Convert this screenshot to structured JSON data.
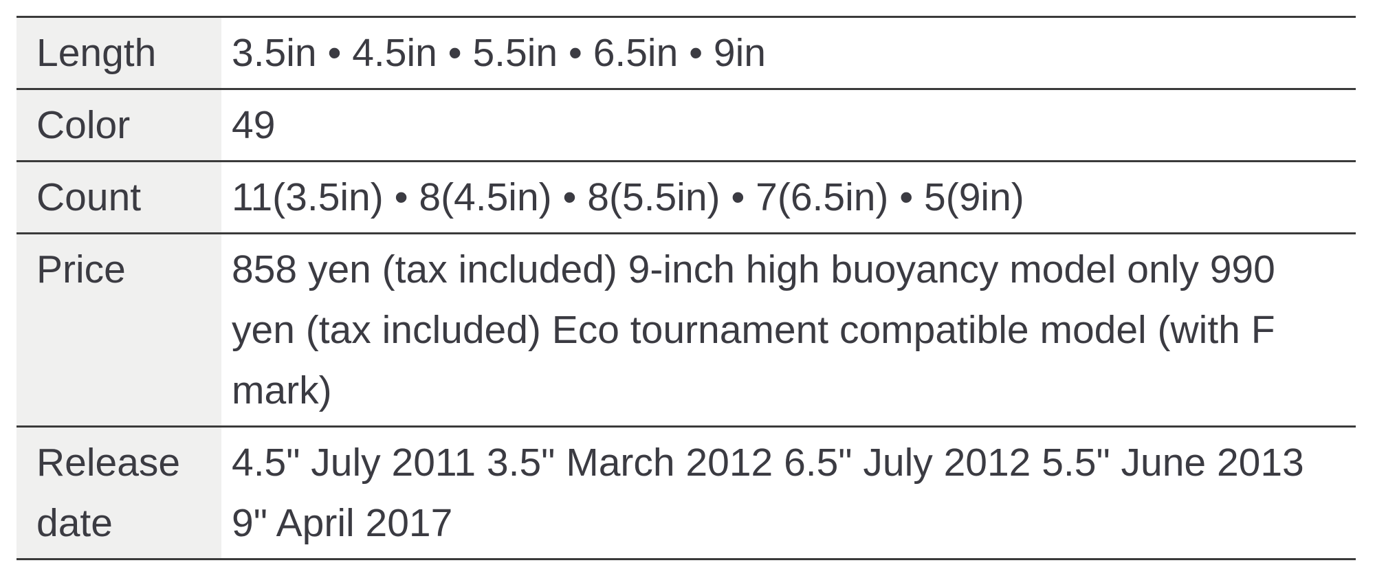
{
  "table": {
    "rows": [
      {
        "label": "Length",
        "value": "3.5in • 4.5in • 5.5in • 6.5in • 9in"
      },
      {
        "label": "Color",
        "value": "49"
      },
      {
        "label": "Count",
        "value": "11(3.5in) • 8(4.5in) • 8(5.5in) • 7(6.5in) • 5(9in)"
      },
      {
        "label": "Price",
        "value": "858 yen (tax included) 9-inch high buoyancy model only 990 yen (tax included) Eco tournament compatible model (with F mark)"
      },
      {
        "label": "Release date",
        "value": "4.5\" July 2011 3.5\" March 2012 6.5\" July 2012 5.5\" June 2013 9\" April 2017"
      }
    ]
  },
  "colors": {
    "label_column_background": "#f0f0ef",
    "row_border": "#3a3a3a",
    "text": "#3b3b42",
    "page_background": "#ffffff"
  }
}
